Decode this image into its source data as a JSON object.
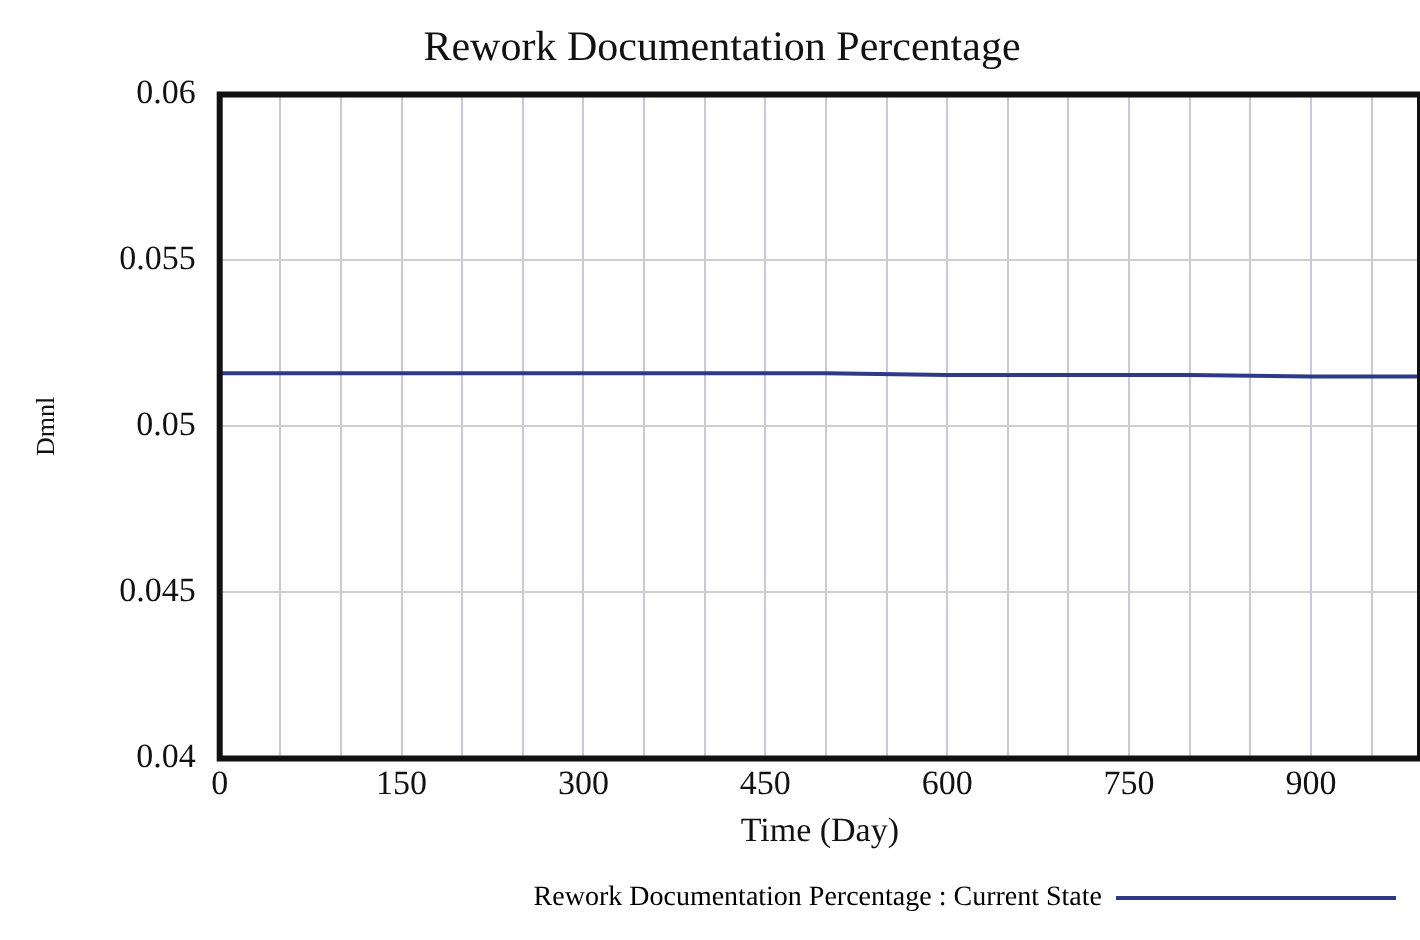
{
  "chart_data": {
    "type": "line",
    "title": "Rework Documentation Percentage",
    "xlabel": "Time (Day)",
    "ylabel": "Dmnl",
    "x": [
      0,
      100,
      200,
      300,
      400,
      500,
      600,
      700,
      800,
      900,
      990
    ],
    "series": [
      {
        "name": "Rework Documentation Percentage : Current State",
        "color": "#2e3a87",
        "values": [
          0.0516,
          0.0516,
          0.0516,
          0.0516,
          0.0516,
          0.0516,
          0.05155,
          0.05155,
          0.05155,
          0.0515,
          0.0515
        ]
      }
    ],
    "xlim": [
      0,
      990
    ],
    "xticks": [
      0,
      {
        "value": 50,
        "label": null
      },
      {
        "value": 100,
        "label": null
      },
      150,
      {
        "value": 200,
        "label": null
      },
      {
        "value": 250,
        "label": null
      },
      300,
      {
        "value": 350,
        "label": null
      },
      {
        "value": 400,
        "label": null
      },
      450,
      {
        "value": 500,
        "label": null
      },
      {
        "value": 550,
        "label": null
      },
      600,
      {
        "value": 650,
        "label": null
      },
      {
        "value": 700,
        "label": null
      },
      750,
      {
        "value": 800,
        "label": null
      },
      {
        "value": 850,
        "label": null
      },
      900,
      {
        "value": 950,
        "label": null
      }
    ],
    "ylim": [
      0.04,
      0.06
    ],
    "yticks": [
      0.04,
      0.045,
      0.05,
      0.055,
      0.06
    ],
    "grid": true,
    "legend": "bottom",
    "marker": "none",
    "line_style": "solid"
  }
}
